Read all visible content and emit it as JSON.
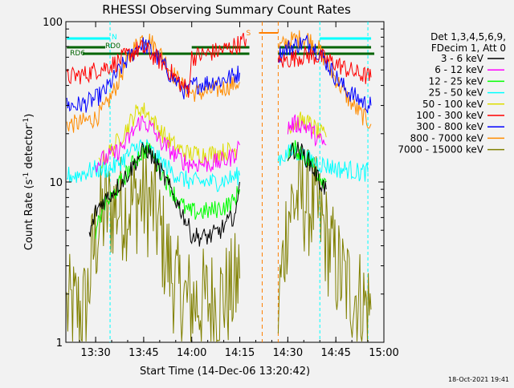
{
  "chart_data": {
    "type": "line",
    "title": "RHESSI Observing Summary Count Rates",
    "xlabel": "Start Time (14-Dec-06 13:20:42)",
    "ylabel": "Count Rate (s⁻¹ detector⁻¹)",
    "ylabel_parts": [
      "Count Rate (s",
      "-1",
      " detector",
      "-1",
      ")"
    ],
    "yscale": "log",
    "ylim": [
      1,
      100
    ],
    "xlim": [
      "13:20:42",
      "15:00:00"
    ],
    "x_ticks": [
      "13:30",
      "13:45",
      "14:00",
      "14:15",
      "14:30",
      "14:45",
      "15:00"
    ],
    "y_ticks": [
      "1",
      "10",
      "100"
    ],
    "legend_header": [
      "Det 1,3,4,5,6,9,",
      "FDecim 1, Att 0"
    ],
    "legend_position": "right",
    "grid": false,
    "timestamp": "18-Oct-2021 19:41",
    "annotations": [
      {
        "text": "N",
        "x": "13:35",
        "color": "#00ffff"
      },
      {
        "text": "S",
        "x": "14:17",
        "color": "#ff7f00"
      },
      {
        "text": "RD0",
        "x": "13:33",
        "color": "#006400"
      },
      {
        "text": "RD6",
        "x": "13:22",
        "color": "#006400"
      }
    ],
    "markers": {
      "night_lines": [
        "13:34:30",
        "14:40",
        "14:55"
      ],
      "saa_lines": [
        "14:22",
        "14:27"
      ],
      "day_segments": [
        [
          "13:21",
          "13:34:30"
        ],
        [
          "14:40",
          "14:56"
        ]
      ],
      "saa_segment": [
        "14:21",
        "14:27"
      ],
      "rd0_segments": [
        [
          "13:21",
          "13:33"
        ],
        [
          "14:00",
          "14:18"
        ],
        [
          "14:27",
          "14:56"
        ]
      ],
      "rd6_segments": [
        [
          "13:26",
          "14:18"
        ],
        [
          "14:27",
          "14:57"
        ]
      ]
    },
    "series": [
      {
        "name": "3 - 6 keV",
        "color": "#000000",
        "segments": [
          {
            "x": [
              "13:28",
              "13:30",
              "13:32",
              "13:35",
              "13:38",
              "13:41",
              "13:44",
              "13:46",
              "13:48",
              "13:51",
              "13:54",
              "13:57",
              "14:00",
              "14:03",
              "14:06",
              "14:09",
              "14:12",
              "14:14",
              "14:15"
            ],
            "y": [
              4.5,
              6.5,
              7.5,
              8.5,
              10,
              12,
              15,
              16,
              14,
              11,
              8.5,
              6.5,
              4.7,
              4.5,
              4.6,
              5,
              5.8,
              6.5,
              10
            ]
          },
          {
            "x": [
              "14:30",
              "14:32",
              "14:34",
              "14:36",
              "14:38",
              "14:40",
              "14:42"
            ],
            "y": [
              15,
              16,
              15.5,
              14,
              12,
              10,
              9
            ]
          }
        ]
      },
      {
        "name": "6 - 12 keV",
        "color": "#ff00ff",
        "segments": [
          {
            "x": [
              "13:30",
              "13:33",
              "13:36",
              "13:39",
              "13:42",
              "13:44",
              "13:46",
              "13:48",
              "13:50",
              "13:53",
              "13:56",
              "13:59",
              "14:02",
              "14:06",
              "14:10",
              "14:13",
              "14:15"
            ],
            "y": [
              13,
              14,
              15,
              17,
              21,
              24,
              23,
              21,
              18,
              16,
              14,
              13,
              13,
              13,
              13.5,
              14.5,
              17
            ]
          },
          {
            "x": [
              "14:30",
              "14:32",
              "14:34",
              "14:36",
              "14:38",
              "14:40",
              "14:42"
            ],
            "y": [
              22,
              23,
              23,
              22,
              20,
              18,
              17
            ]
          }
        ]
      },
      {
        "name": "12 - 25 keV",
        "color": "#00ff00",
        "segments": [
          {
            "x": [
              "13:30",
              "13:32",
              "13:35",
              "13:38",
              "13:41",
              "13:44",
              "13:46",
              "13:48",
              "13:50",
              "13:53",
              "13:56",
              "13:59",
              "14:02",
              "14:06",
              "14:10",
              "14:13",
              "14:15"
            ],
            "y": [
              4.5,
              7,
              8,
              10,
              12.5,
              15,
              16,
              14.5,
              12,
              9.5,
              7.5,
              6.5,
              6.5,
              6.6,
              7,
              7.5,
              9
            ]
          },
          {
            "x": [
              "14:30",
              "14:32",
              "14:34",
              "14:36",
              "14:38",
              "14:40",
              "14:42"
            ],
            "y": [
              15,
              16,
              15.5,
              14,
              12.5,
              11,
              10
            ]
          }
        ]
      },
      {
        "name": "25 - 50 keV",
        "color": "#00ffff",
        "segments": [
          {
            "x": [
              "13:21",
              "13:24",
              "13:27",
              "13:30",
              "13:33",
              "13:36",
              "13:39",
              "13:42",
              "13:44",
              "13:46",
              "13:48",
              "13:51",
              "13:54",
              "13:57",
              "14:00",
              "14:04",
              "14:08",
              "14:12",
              "14:15"
            ],
            "y": [
              11,
              11,
              11.5,
              12,
              12,
              12.5,
              14,
              16,
              17,
              16.5,
              15,
              13,
              11.5,
              10.5,
              10,
              10,
              10,
              10.5,
              11
            ]
          },
          {
            "x": [
              "14:27",
              "14:30",
              "14:32",
              "14:34",
              "14:36",
              "14:38",
              "14:40",
              "14:43",
              "14:46",
              "14:49",
              "14:52",
              "14:55"
            ],
            "y": [
              14,
              15,
              15.5,
              15,
              14,
              13.5,
              13,
              12.5,
              12,
              12,
              11.5,
              11.5
            ]
          }
        ]
      },
      {
        "name": "50 - 100 keV",
        "color": "#dddd00",
        "segments": [
          {
            "x": [
              "13:31",
              "13:34",
              "13:37",
              "13:40",
              "13:42",
              "13:44",
              "13:46",
              "13:48",
              "13:50",
              "13:53",
              "13:56",
              "13:59",
              "14:03",
              "14:07",
              "14:11",
              "14:14"
            ],
            "y": [
              13,
              15,
              18,
              22,
              26,
              29,
              27,
              24,
              21,
              18,
              16,
              15,
              15,
              15,
              15.5,
              16
            ]
          },
          {
            "x": [
              "14:30",
              "14:32",
              "14:34",
              "14:36",
              "14:38",
              "14:40",
              "14:42"
            ],
            "y": [
              22,
              23,
              24,
              23.5,
              22,
              20,
              19
            ]
          }
        ]
      },
      {
        "name": "100 - 300 keV",
        "color": "#ff0000",
        "segments": [
          {
            "x": [
              "13:21",
              "13:24",
              "13:27",
              "13:30",
              "13:33",
              "13:36",
              "13:39",
              "13:42",
              "13:44",
              "13:46",
              "13:48",
              "13:51",
              "13:54",
              "13:57",
              "13:59",
              "14:00",
              "14:03",
              "14:06",
              "14:09",
              "14:12",
              "14:15",
              "14:17"
            ],
            "y": [
              45,
              46,
              47,
              50,
              52,
              55,
              60,
              65,
              68,
              66,
              61,
              55,
              47,
              40,
              38,
              60,
              62,
              64,
              66,
              69,
              73,
              78
            ]
          },
          {
            "x": [
              "14:27",
              "14:30",
              "14:33",
              "14:36",
              "14:38",
              "14:40",
              "14:42",
              "14:45",
              "14:48",
              "14:51",
              "14:54",
              "14:56"
            ],
            "y": [
              55,
              58,
              60,
              62,
              61,
              60,
              58,
              55,
              51,
              48,
              46,
              45
            ]
          }
        ]
      },
      {
        "name": "300 - 800 keV",
        "color": "#0000ff",
        "segments": [
          {
            "x": [
              "13:21",
              "13:24",
              "13:27",
              "13:30",
              "13:33",
              "13:36",
              "13:39",
              "13:42",
              "13:44",
              "13:46",
              "13:48",
              "13:51",
              "13:54",
              "13:57",
              "13:59",
              "14:00",
              "14:03",
              "14:06",
              "14:09",
              "14:12",
              "14:15"
            ],
            "y": [
              30,
              30,
              31,
              33,
              37,
              45,
              55,
              65,
              72,
              70,
              64,
              54,
              45,
              38,
              36,
              40,
              41,
              42,
              43,
              45,
              48
            ]
          },
          {
            "x": [
              "14:27",
              "14:30",
              "14:33",
              "14:36",
              "14:38",
              "14:40",
              "14:42",
              "14:45",
              "14:48",
              "14:51",
              "14:54",
              "14:56"
            ],
            "y": [
              62,
              68,
              72,
              74,
              70,
              64,
              56,
              45,
              38,
              34,
              31,
              30
            ]
          }
        ]
      },
      {
        "name": "800 - 7000 keV",
        "color": "#ff8c00",
        "segments": [
          {
            "x": [
              "13:21",
              "13:24",
              "13:27",
              "13:30",
              "13:33",
              "13:36",
              "13:39",
              "13:42",
              "13:44",
              "13:46",
              "13:48",
              "13:51",
              "13:54",
              "13:57",
              "13:59",
              "14:00",
              "14:03",
              "14:06",
              "14:09",
              "14:12",
              "14:15"
            ],
            "y": [
              23,
              23,
              24,
              25,
              29,
              38,
              52,
              68,
              78,
              80,
              72,
              60,
              48,
              40,
              37,
              36,
              36,
              37,
              38,
              40,
              42
            ]
          },
          {
            "x": [
              "14:27",
              "14:30",
              "14:33",
              "14:36",
              "14:38",
              "14:40",
              "14:42",
              "14:45",
              "14:48",
              "14:51",
              "14:54",
              "14:56"
            ],
            "y": [
              68,
              75,
              78,
              79,
              74,
              66,
              56,
              44,
              35,
              29,
              25,
              23
            ]
          }
        ]
      },
      {
        "name": "7000 - 15000 keV",
        "color": "#808000",
        "segments": [
          {
            "x": [
              "13:21",
              "13:24",
              "13:27",
              "13:29",
              "13:31",
              "13:33",
              "13:36",
              "13:39",
              "13:42",
              "13:44",
              "13:46",
              "13:48",
              "13:50",
              "13:52",
              "13:54",
              "13:56",
              "13:58",
              "14:00",
              "14:03",
              "14:06",
              "14:09",
              "14:12",
              "14:15"
            ],
            "y": [
              1.6,
              1.6,
              1.6,
              3.5,
              5.5,
              6.5,
              7,
              7,
              7.5,
              8,
              7.5,
              7,
              5,
              3.5,
              2.6,
              2,
              1.8,
              1.8,
              1.8,
              1.8,
              1.9,
              2,
              2.5
            ]
          },
          {
            "x": [
              "14:27",
              "14:30",
              "14:32",
              "14:34",
              "14:36",
              "14:38",
              "14:40",
              "14:42",
              "14:45",
              "14:48",
              "14:51",
              "14:54",
              "14:56"
            ],
            "y": [
              1.6,
              6.5,
              7.5,
              8,
              7.5,
              7,
              6,
              4.5,
              3,
              2.3,
              2,
              1.7,
              1.6
            ]
          }
        ]
      }
    ]
  }
}
